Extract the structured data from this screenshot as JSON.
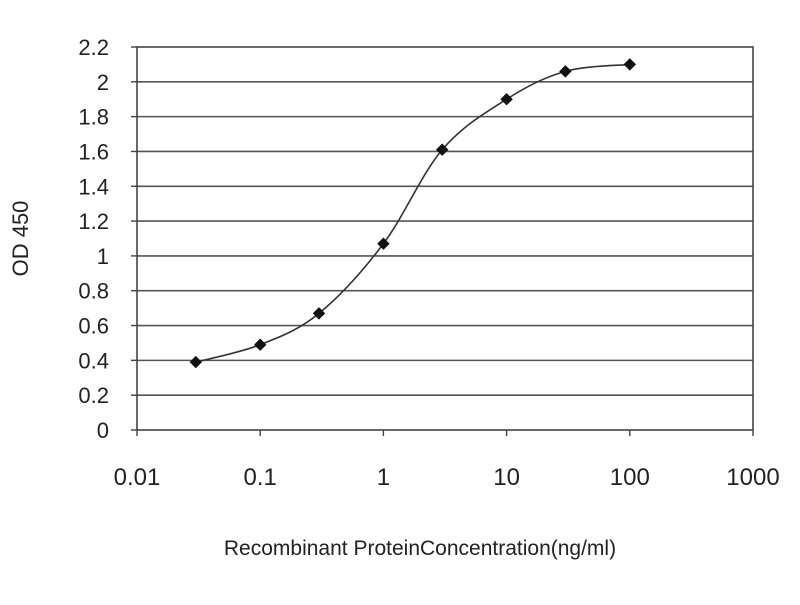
{
  "chart_data": {
    "type": "line",
    "title": "",
    "xlabel": "Recombinant ProteinConcentration(ng/ml)",
    "ylabel": "OD 450",
    "x_scale": "log",
    "xlim": [
      0.01,
      1000
    ],
    "ylim": [
      0,
      2.2
    ],
    "x_ticks": [
      0.01,
      0.1,
      1,
      10,
      100,
      1000
    ],
    "x_tick_labels": [
      "0.01",
      "0.1",
      "1",
      "10",
      "100",
      "1000"
    ],
    "y_ticks": [
      0,
      0.2,
      0.4,
      0.6,
      0.8,
      1,
      1.2,
      1.4,
      1.6,
      1.8,
      2,
      2.2
    ],
    "y_tick_labels": [
      "0",
      "0.2",
      "0.4",
      "0.6",
      "0.8",
      "1",
      "1.2",
      "1.4",
      "1.6",
      "1.8",
      "2",
      "2.2"
    ],
    "grid": "horizontal",
    "legend": "none",
    "series": [
      {
        "x": [
          0.03,
          0.1,
          0.3,
          1,
          3,
          10,
          30,
          100
        ],
        "values": [
          0.39,
          0.49,
          0.67,
          1.07,
          1.61,
          1.9,
          2.06,
          2.1
        ]
      }
    ],
    "colors": {
      "line": "#333333",
      "marker": "#111111",
      "grid": "#555555",
      "frame": "#444444"
    }
  }
}
